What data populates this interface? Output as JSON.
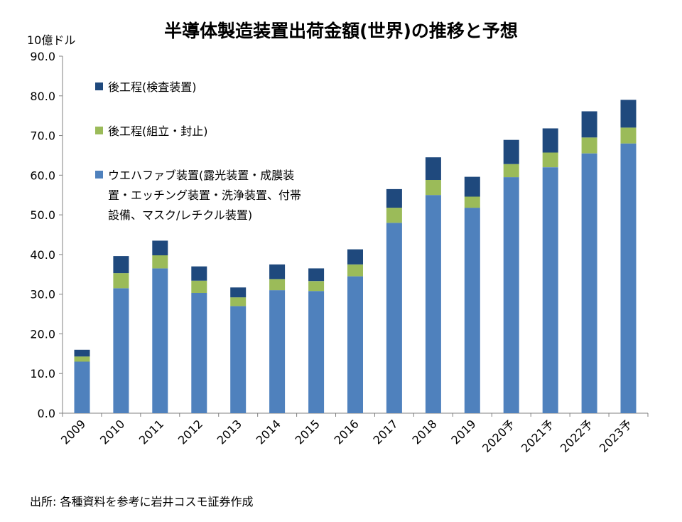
{
  "chart_data": {
    "type": "bar",
    "stacked": true,
    "title": "半導体製造装置出荷金額(世界)の推移と予想",
    "unit_label": "10億ドル",
    "ylim": [
      0,
      90
    ],
    "yticks": [
      "0.0",
      "10.0",
      "20.0",
      "30.0",
      "40.0",
      "50.0",
      "60.0",
      "70.0",
      "80.0",
      "90.0"
    ],
    "categories": [
      "2009",
      "2010",
      "2011",
      "2012",
      "2013",
      "2014",
      "2015",
      "2016",
      "2017",
      "2018",
      "2019",
      "2020予",
      "2021予",
      "2022予",
      "2023予"
    ],
    "series": [
      {
        "name": "ウエハファブ装置(露光装置・成膜装置・エッチング装置・洗浄装置、付帯設備、マスク/レチクル装置)",
        "legend_lines": [
          "ウエハファブ装置(露光装置・成膜装",
          "置・エッチング装置・洗浄装置、付帯",
          "設備、マスク/レチクル装置)"
        ],
        "color": "#4f81bd",
        "values": [
          13.0,
          31.5,
          36.5,
          30.3,
          27.0,
          31.0,
          30.8,
          34.5,
          48.0,
          55.0,
          51.8,
          59.5,
          62.0,
          65.5,
          68.0
        ]
      },
      {
        "name": "後工程(組立・封止)",
        "legend_lines": [
          "後工程(組立・封止)"
        ],
        "color": "#9bbb59",
        "values": [
          1.3,
          3.8,
          3.3,
          3.1,
          2.2,
          2.8,
          2.5,
          3.0,
          3.8,
          3.8,
          2.8,
          3.3,
          3.7,
          4.0,
          4.0
        ]
      },
      {
        "name": "後工程(検査装置)",
        "legend_lines": [
          "後工程(検査装置)"
        ],
        "color": "#1f497d",
        "values": [
          1.7,
          4.3,
          3.7,
          3.6,
          2.5,
          3.7,
          3.2,
          3.8,
          4.7,
          5.7,
          5.0,
          6.1,
          6.1,
          6.6,
          7.0
        ]
      }
    ],
    "legend_order": [
      2,
      1,
      0
    ],
    "grid": false
  },
  "source": "出所: 各種資料を参考に岩井コスモ証券作成"
}
